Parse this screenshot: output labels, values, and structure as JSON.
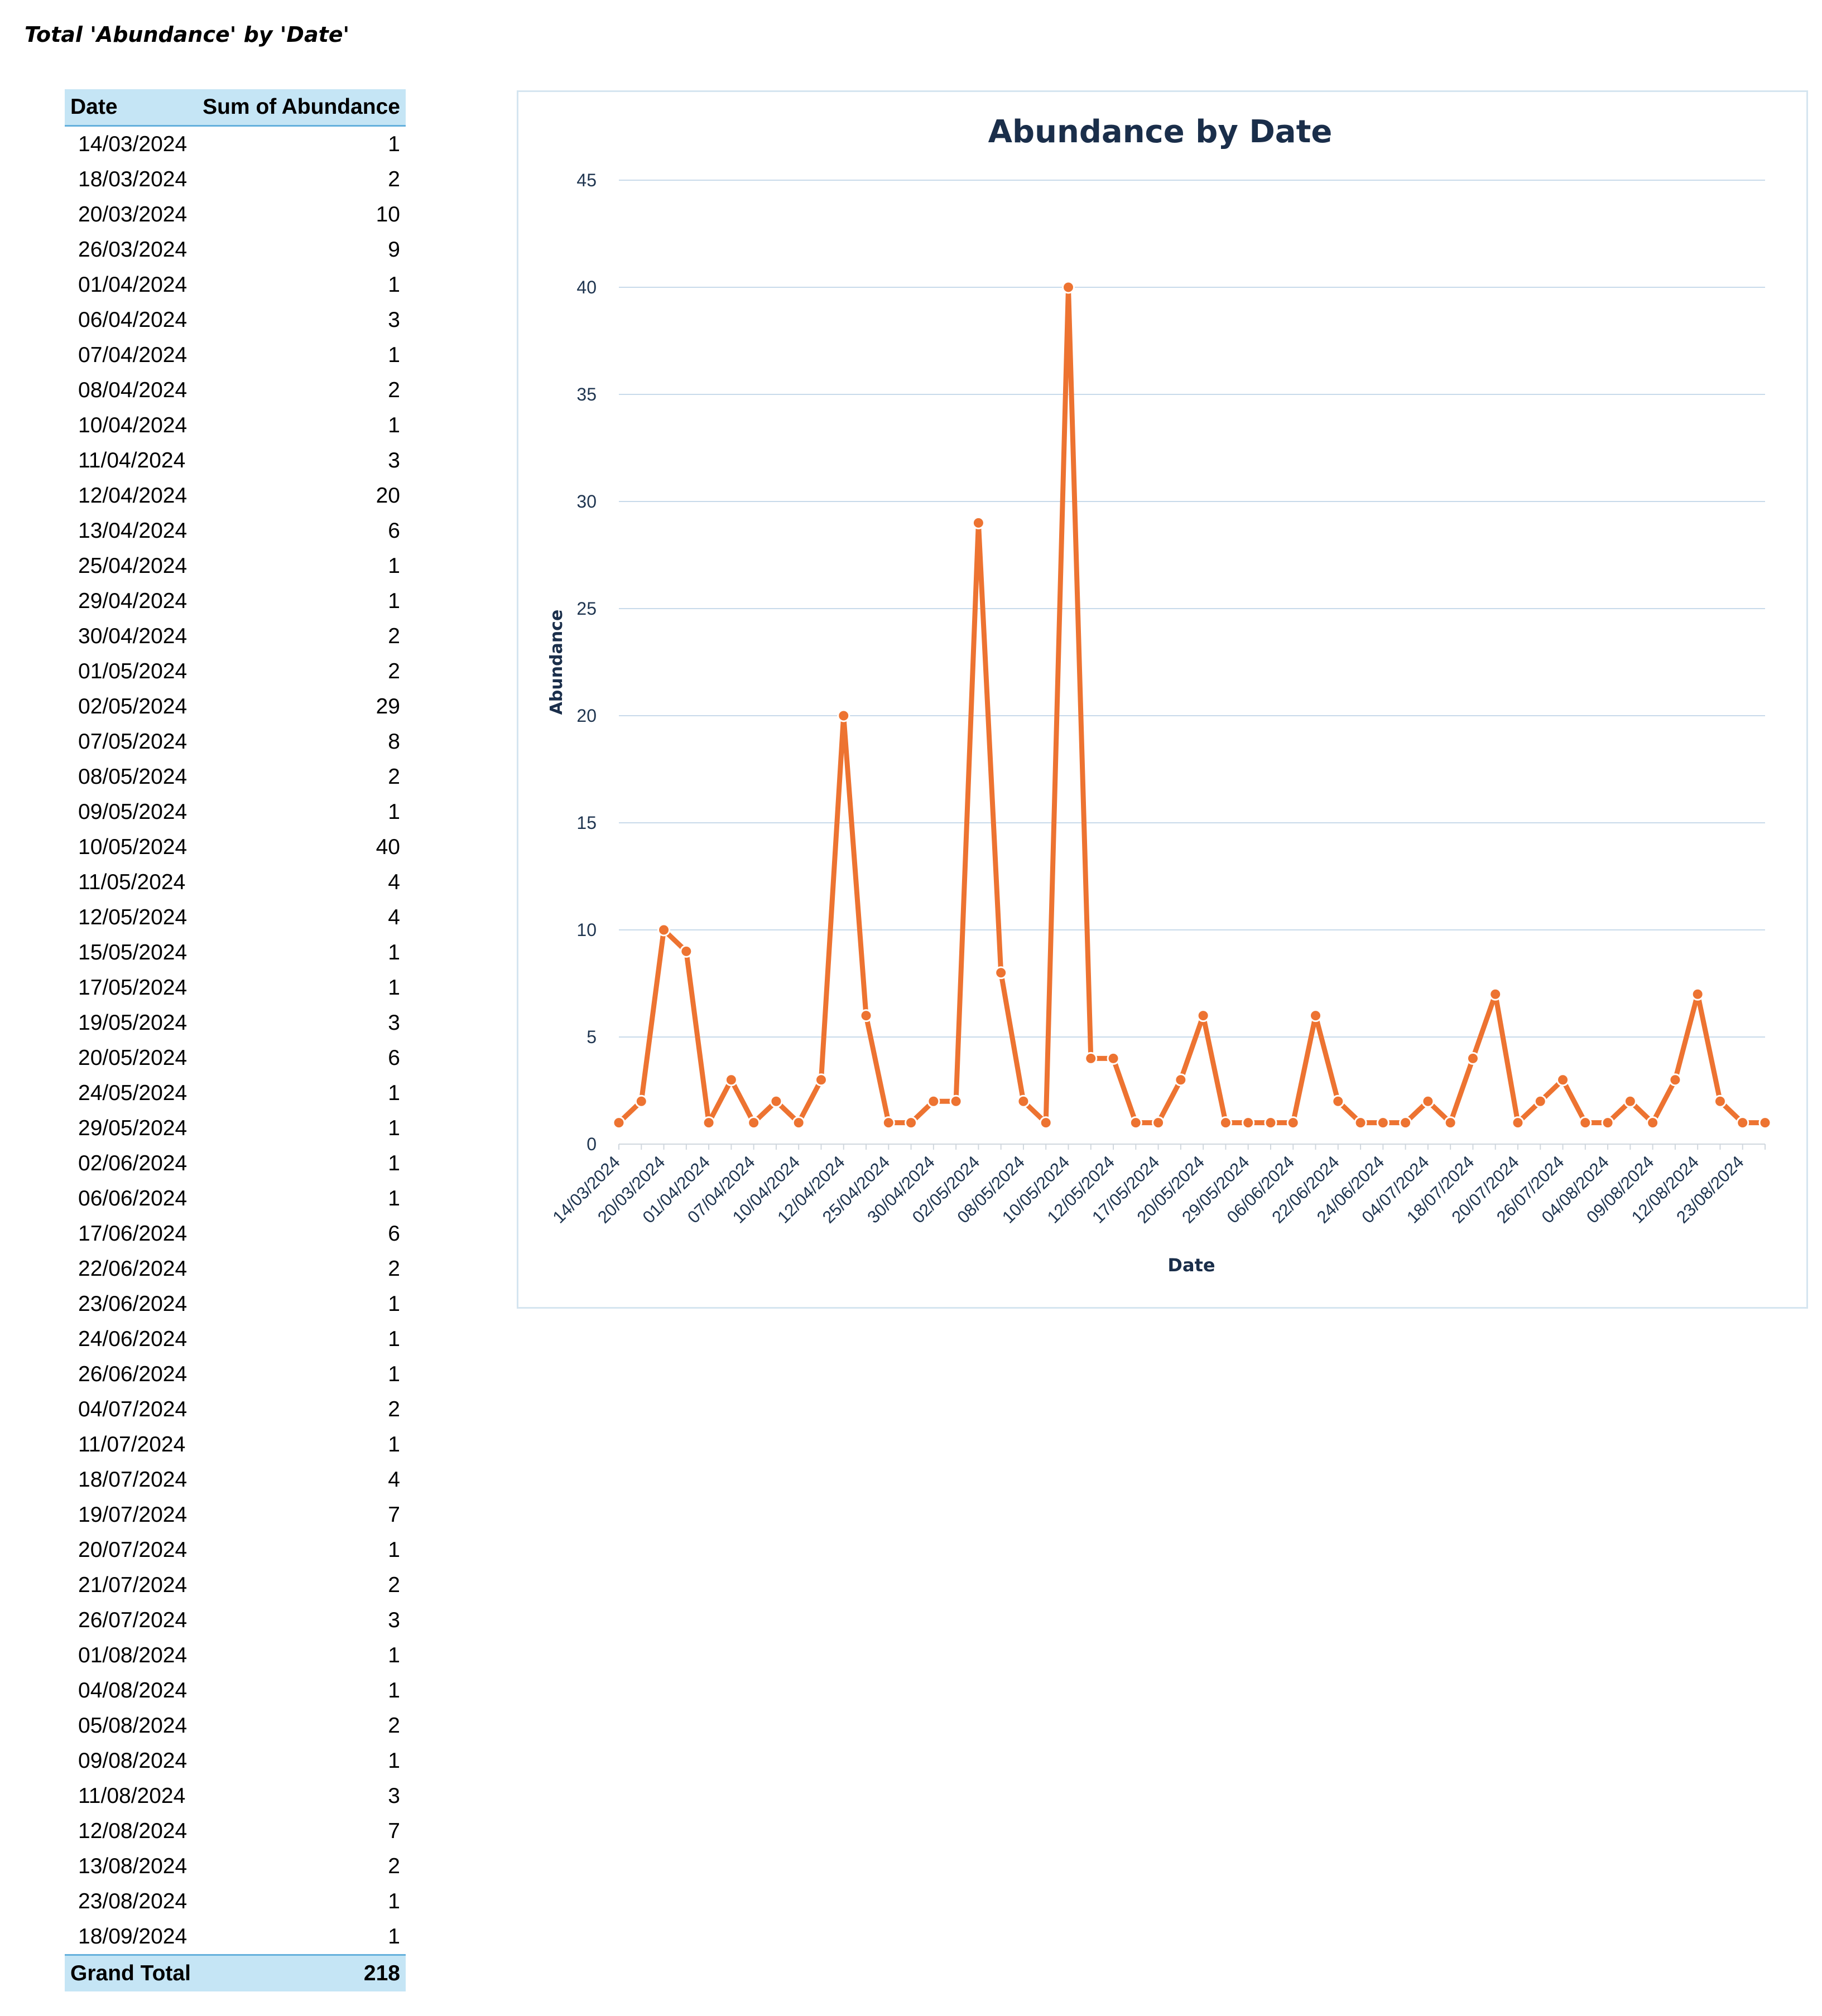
{
  "sheet_title": "Total 'Abundance' by 'Date'",
  "pivot": {
    "header_date": "Date",
    "header_sum": "Sum of Abundance",
    "rows": [
      {
        "date": "14/03/2024",
        "value": "1"
      },
      {
        "date": "18/03/2024",
        "value": "2"
      },
      {
        "date": "20/03/2024",
        "value": "10"
      },
      {
        "date": "26/03/2024",
        "value": "9"
      },
      {
        "date": "01/04/2024",
        "value": "1"
      },
      {
        "date": "06/04/2024",
        "value": "3"
      },
      {
        "date": "07/04/2024",
        "value": "1"
      },
      {
        "date": "08/04/2024",
        "value": "2"
      },
      {
        "date": "10/04/2024",
        "value": "1"
      },
      {
        "date": "11/04/2024",
        "value": "3"
      },
      {
        "date": "12/04/2024",
        "value": "20"
      },
      {
        "date": "13/04/2024",
        "value": "6"
      },
      {
        "date": "25/04/2024",
        "value": "1"
      },
      {
        "date": "29/04/2024",
        "value": "1"
      },
      {
        "date": "30/04/2024",
        "value": "2"
      },
      {
        "date": "01/05/2024",
        "value": "2"
      },
      {
        "date": "02/05/2024",
        "value": "29"
      },
      {
        "date": "07/05/2024",
        "value": "8"
      },
      {
        "date": "08/05/2024",
        "value": "2"
      },
      {
        "date": "09/05/2024",
        "value": "1"
      },
      {
        "date": "10/05/2024",
        "value": "40"
      },
      {
        "date": "11/05/2024",
        "value": "4"
      },
      {
        "date": "12/05/2024",
        "value": "4"
      },
      {
        "date": "15/05/2024",
        "value": "1"
      },
      {
        "date": "17/05/2024",
        "value": "1"
      },
      {
        "date": "19/05/2024",
        "value": "3"
      },
      {
        "date": "20/05/2024",
        "value": "6"
      },
      {
        "date": "24/05/2024",
        "value": "1"
      },
      {
        "date": "29/05/2024",
        "value": "1"
      },
      {
        "date": "02/06/2024",
        "value": "1"
      },
      {
        "date": "06/06/2024",
        "value": "1"
      },
      {
        "date": "17/06/2024",
        "value": "6"
      },
      {
        "date": "22/06/2024",
        "value": "2"
      },
      {
        "date": "23/06/2024",
        "value": "1"
      },
      {
        "date": "24/06/2024",
        "value": "1"
      },
      {
        "date": "26/06/2024",
        "value": "1"
      },
      {
        "date": "04/07/2024",
        "value": "2"
      },
      {
        "date": "11/07/2024",
        "value": "1"
      },
      {
        "date": "18/07/2024",
        "value": "4"
      },
      {
        "date": "19/07/2024",
        "value": "7"
      },
      {
        "date": "20/07/2024",
        "value": "1"
      },
      {
        "date": "21/07/2024",
        "value": "2"
      },
      {
        "date": "26/07/2024",
        "value": "3"
      },
      {
        "date": "01/08/2024",
        "value": "1"
      },
      {
        "date": "04/08/2024",
        "value": "1"
      },
      {
        "date": "05/08/2024",
        "value": "2"
      },
      {
        "date": "09/08/2024",
        "value": "1"
      },
      {
        "date": "11/08/2024",
        "value": "3"
      },
      {
        "date": "12/08/2024",
        "value": "7"
      },
      {
        "date": "13/08/2024",
        "value": "2"
      },
      {
        "date": "23/08/2024",
        "value": "1"
      },
      {
        "date": "18/09/2024",
        "value": "1"
      }
    ],
    "total_label": "Grand Total",
    "total_value": "218"
  },
  "chart_data": {
    "type": "line",
    "title": "Abundance by Date",
    "xlabel": "Date",
    "ylabel": "Abundance",
    "ylim": [
      0,
      45
    ],
    "yticks": [
      0,
      5,
      10,
      15,
      20,
      25,
      30,
      35,
      40,
      45
    ],
    "grid": true,
    "legend": "none",
    "line_color": "#ed7331",
    "categories": [
      "14/03/2024",
      "18/03/2024",
      "20/03/2024",
      "26/03/2024",
      "01/04/2024",
      "06/04/2024",
      "07/04/2024",
      "08/04/2024",
      "10/04/2024",
      "11/04/2024",
      "12/04/2024",
      "13/04/2024",
      "25/04/2024",
      "29/04/2024",
      "30/04/2024",
      "01/05/2024",
      "02/05/2024",
      "07/05/2024",
      "08/05/2024",
      "09/05/2024",
      "10/05/2024",
      "11/05/2024",
      "12/05/2024",
      "15/05/2024",
      "17/05/2024",
      "19/05/2024",
      "20/05/2024",
      "24/05/2024",
      "29/05/2024",
      "02/06/2024",
      "06/06/2024",
      "17/06/2024",
      "22/06/2024",
      "23/06/2024",
      "24/06/2024",
      "26/06/2024",
      "04/07/2024",
      "11/07/2024",
      "18/07/2024",
      "19/07/2024",
      "20/07/2024",
      "21/07/2024",
      "26/07/2024",
      "01/08/2024",
      "04/08/2024",
      "05/08/2024",
      "09/08/2024",
      "11/08/2024",
      "12/08/2024",
      "13/08/2024",
      "23/08/2024",
      "18/09/2024"
    ],
    "x_tick_labels": [
      "14/03/2024",
      "20/03/2024",
      "01/04/2024",
      "07/04/2024",
      "10/04/2024",
      "12/04/2024",
      "25/04/2024",
      "30/04/2024",
      "02/05/2024",
      "08/05/2024",
      "10/05/2024",
      "12/05/2024",
      "17/05/2024",
      "20/05/2024",
      "29/05/2024",
      "06/06/2024",
      "22/06/2024",
      "24/06/2024",
      "04/07/2024",
      "18/07/2024",
      "20/07/2024",
      "26/07/2024",
      "04/08/2024",
      "09/08/2024",
      "12/08/2024",
      "23/08/2024"
    ],
    "series": [
      {
        "values": [
          1,
          2,
          10,
          9,
          1,
          3,
          1,
          2,
          1,
          3,
          20,
          6,
          1,
          1,
          2,
          2,
          29,
          8,
          2,
          1,
          40,
          4,
          4,
          1,
          1,
          3,
          6,
          1,
          1,
          1,
          1,
          6,
          2,
          1,
          1,
          1,
          2,
          1,
          4,
          7,
          1,
          2,
          3,
          1,
          1,
          2,
          1,
          3,
          7,
          2,
          1,
          1
        ]
      }
    ]
  }
}
